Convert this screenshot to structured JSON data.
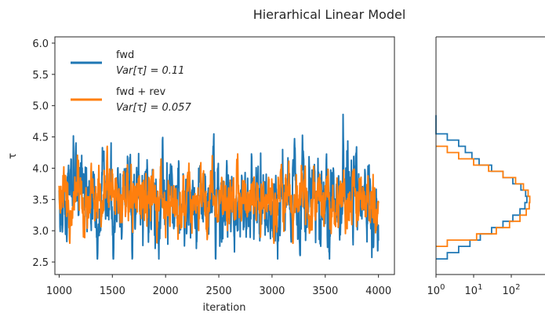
{
  "chart_data": {
    "type": "line",
    "title": "Hierarhical Linear Model",
    "colors": {
      "fwd": "#1f77b4",
      "fwd_rev": "#ff7f0e"
    },
    "trace": {
      "xlabel": "iteration",
      "ylabel": "τ",
      "xlim": [
        960,
        4150
      ],
      "ylim": [
        2.3,
        6.1
      ],
      "x_ticks": [
        1000,
        1500,
        2000,
        2500,
        3000,
        3500,
        4000
      ],
      "x_tick_labels": [
        "1000",
        "1500",
        "2000",
        "2500",
        "3000",
        "3500",
        "4000"
      ],
      "y_ticks": [
        2.5,
        3.0,
        3.5,
        4.0,
        4.5,
        5.0,
        5.5,
        6.0
      ],
      "y_tick_labels": [
        "2.5",
        "3.0",
        "3.5",
        "4.0",
        "4.5",
        "5.0",
        "5.5",
        "6.0"
      ],
      "legend_position": "top-left",
      "series": [
        {
          "name": "fwd",
          "stat_label": "Var[τ] = 0.11",
          "color": "#1f77b4",
          "iter_start": 1000,
          "iter_end": 4000,
          "mean": 3.48,
          "std": 0.33,
          "min": 2.55,
          "max": 4.86,
          "peaks": [
            [
              1970,
              4.25
            ],
            [
              2330,
              4.45
            ],
            [
              2450,
              4.6
            ],
            [
              3290,
              4.6
            ],
            [
              3400,
              4.35
            ],
            [
              3670,
              4.86
            ],
            [
              3790,
              4.4
            ],
            [
              2470,
              2.62
            ],
            [
              1360,
              2.55
            ],
            [
              3760,
              2.6
            ],
            [
              3260,
              2.7
            ]
          ]
        },
        {
          "name": "fwd + rev",
          "stat_label": "Var[τ] = 0.057",
          "color": "#ff7f0e",
          "iter_start": 1000,
          "iter_end": 4000,
          "mean": 3.48,
          "std": 0.24,
          "min": 2.8,
          "max": 4.35,
          "peaks": [
            [
              1180,
              4.35
            ],
            [
              1450,
              4.35
            ],
            [
              1300,
              4.25
            ],
            [
              2220,
              4.2
            ],
            [
              3130,
              4.25
            ],
            [
              1640,
              4.1
            ],
            [
              2040,
              2.87
            ],
            [
              3040,
              2.85
            ]
          ]
        }
      ]
    },
    "histogram": {
      "x_scale": "log",
      "x_ticks": [
        1,
        10,
        100
      ],
      "x_tick_labels": [
        "10^0",
        "10^1",
        "10^2"
      ],
      "tau_range": [
        2.3,
        6.1
      ],
      "series": [
        {
          "name": "fwd",
          "color": "#1f77b4",
          "bin_edges": [
            2.55,
            2.65,
            2.75,
            2.85,
            2.95,
            3.05,
            3.15,
            3.25,
            3.35,
            3.45,
            3.55,
            3.65,
            3.75,
            3.85,
            3.95,
            4.05,
            4.15,
            4.25,
            4.35,
            4.45,
            4.55,
            4.65,
            4.75,
            4.85
          ],
          "counts": [
            2,
            4,
            8,
            15,
            30,
            60,
            110,
            170,
            230,
            260,
            240,
            180,
            110,
            60,
            30,
            14,
            9,
            6,
            4,
            2,
            1,
            1,
            1
          ]
        },
        {
          "name": "fwd + rev",
          "color": "#ff7f0e",
          "bin_edges": [
            2.75,
            2.85,
            2.95,
            3.05,
            3.15,
            3.25,
            3.35,
            3.45,
            3.55,
            3.65,
            3.75,
            3.85,
            3.95,
            4.05,
            4.15,
            4.25,
            4.35
          ],
          "counts": [
            2,
            12,
            40,
            90,
            170,
            250,
            300,
            310,
            280,
            210,
            130,
            60,
            25,
            10,
            4,
            2
          ]
        }
      ]
    }
  }
}
